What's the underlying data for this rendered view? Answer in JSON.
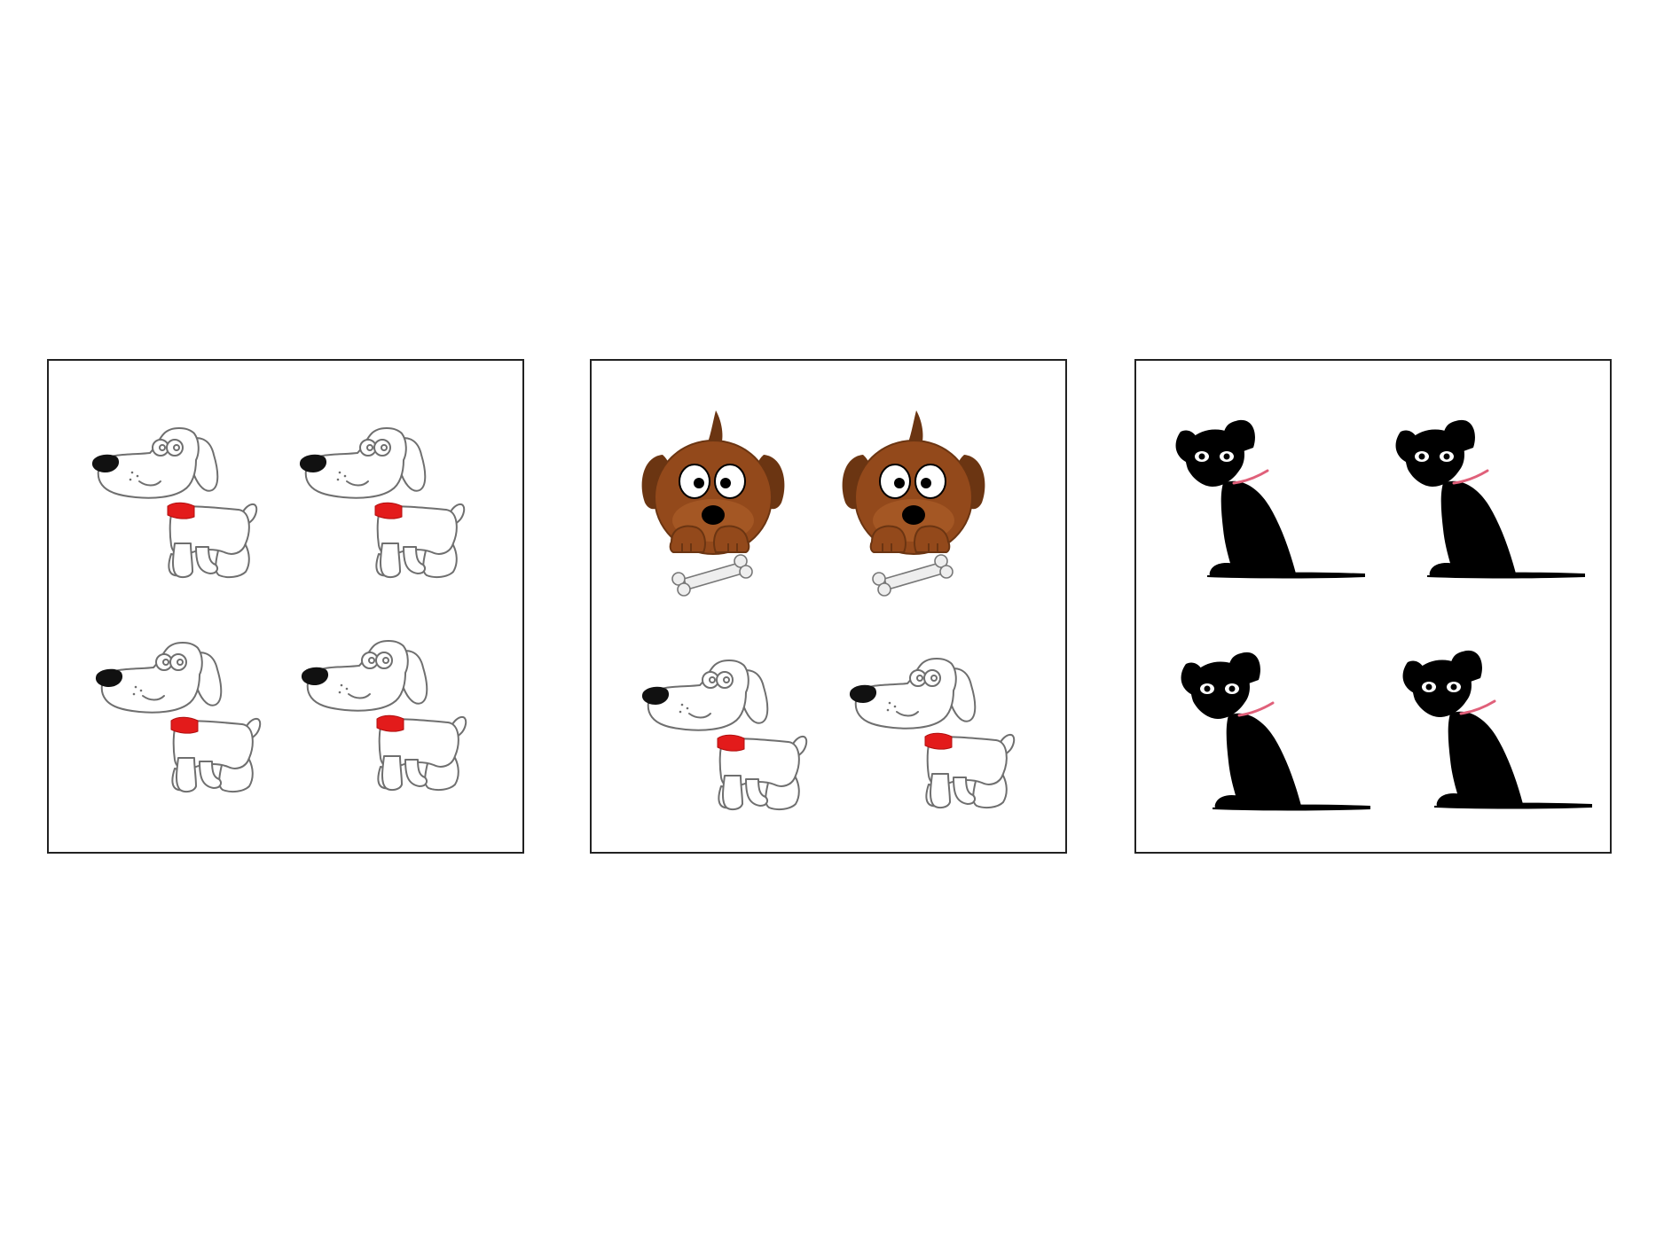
{
  "colors": {
    "background": "#ffffff",
    "panel_border": "#222222",
    "white_dog_fill": "#ffffff",
    "white_dog_outline": "#6f6f6f",
    "nose": "#111111",
    "red_collar": "#e31b1b",
    "brown_dog_dark": "#6b3512",
    "brown_dog_body": "#93491b",
    "brown_dog_light": "#b3632b",
    "bone": "#eeeeee",
    "bone_outline": "#777777",
    "black_dog": "#000000",
    "pink_collar": "#e0607a"
  },
  "panels": [
    {
      "name": "panel-white-dogs",
      "figures": [
        "white-dog",
        "white-dog",
        "white-dog",
        "white-dog"
      ]
    },
    {
      "name": "panel-mixed-dogs",
      "figures": [
        "brown-dog",
        "brown-dog",
        "white-dog",
        "white-dog"
      ]
    },
    {
      "name": "panel-black-dogs",
      "figures": [
        "black-dog",
        "black-dog",
        "black-dog",
        "black-dog"
      ]
    }
  ]
}
